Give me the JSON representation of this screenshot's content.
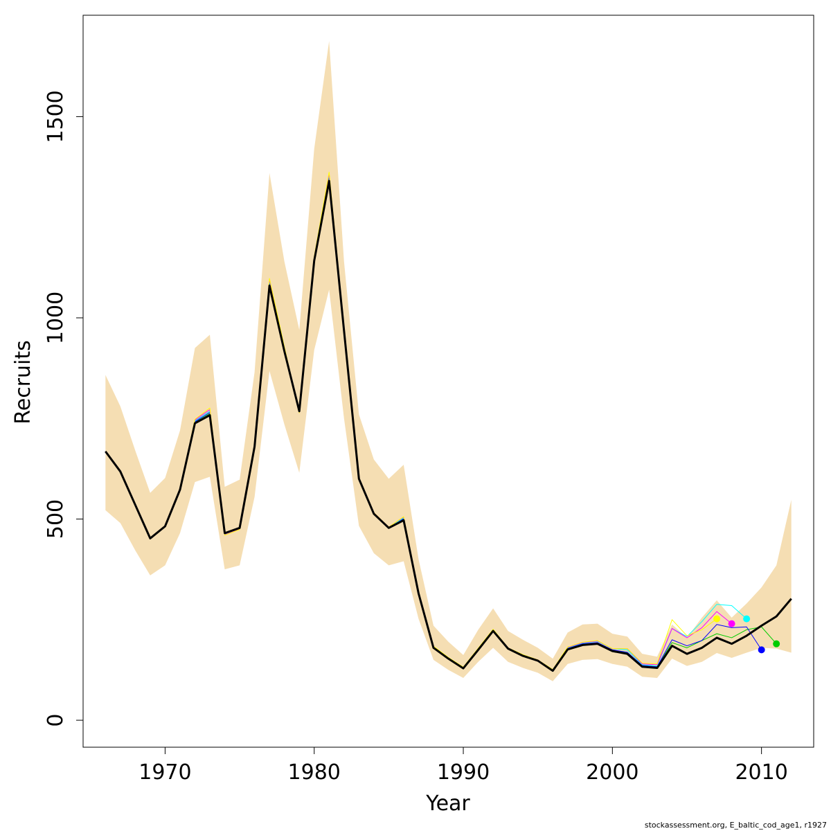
{
  "chart_data": {
    "type": "line",
    "xlabel": "Year",
    "ylabel": "Recruits",
    "xlim": [
      1964.5,
      2013.5
    ],
    "ylim": [
      -67,
      1752
    ],
    "x_ticks": [
      1970,
      1980,
      1990,
      2000,
      2010
    ],
    "y_ticks": [
      0,
      500,
      1000,
      1500
    ],
    "grid": false,
    "colors": {
      "band": "#F5DEB3",
      "main": "#000000"
    },
    "band": {
      "name": "",
      "x": [
        1966,
        1967,
        1968,
        1969,
        1970,
        1971,
        1972,
        1973,
        1974,
        1975,
        1976,
        1977,
        1978,
        1979,
        1980,
        1981,
        1982,
        1983,
        1984,
        1985,
        1986,
        1987,
        1988,
        1989,
        1990,
        1991,
        1992,
        1993,
        1994,
        1995,
        1996,
        1997,
        1998,
        1999,
        2000,
        2001,
        2002,
        2003,
        2004,
        2005,
        2006,
        2007,
        2008,
        2009,
        2010,
        2011,
        2012
      ],
      "lower": [
        522,
        490,
        422,
        360,
        385,
        465,
        592,
        605,
        375,
        385,
        555,
        868,
        735,
        615,
        920,
        1070,
        750,
        483,
        415,
        385,
        395,
        252,
        150,
        125,
        105,
        145,
        180,
        145,
        130,
        118,
        97,
        140,
        150,
        152,
        140,
        133,
        108,
        105,
        153,
        135,
        145,
        167,
        155,
        168,
        180,
        178,
        168
      ],
      "upper": [
        858,
        780,
        670,
        565,
        602,
        720,
        925,
        958,
        580,
        598,
        865,
        1360,
        1140,
        970,
        1420,
        1688,
        1140,
        760,
        648,
        600,
        635,
        400,
        235,
        195,
        162,
        225,
        278,
        222,
        200,
        180,
        153,
        218,
        238,
        240,
        215,
        208,
        165,
        158,
        238,
        205,
        255,
        298,
        255,
        290,
        330,
        385,
        548
      ]
    },
    "series": [
      {
        "name": "",
        "color": "#000000",
        "x": [
          1966,
          1967,
          1968,
          1969,
          1970,
          1971,
          1972,
          1973,
          1974,
          1975,
          1976,
          1977,
          1978,
          1979,
          1980,
          1981,
          1982,
          1983,
          1984,
          1985,
          1986,
          1987,
          1988,
          1989,
          1990,
          1991,
          1992,
          1993,
          1994,
          1995,
          1996,
          1997,
          1998,
          1999,
          2000,
          2001,
          2002,
          2003,
          2004,
          2005,
          2006,
          2007,
          2008,
          2009,
          2010,
          2011,
          2012
        ],
        "values": [
          668,
          618,
          535,
          452,
          482,
          573,
          738,
          758,
          465,
          478,
          680,
          1080,
          917,
          768,
          1142,
          1340,
          968,
          600,
          513,
          478,
          497,
          315,
          180,
          153,
          129,
          175,
          222,
          178,
          160,
          148,
          123,
          176,
          187,
          190,
          172,
          165,
          133,
          130,
          185,
          165,
          180,
          205,
          190,
          210,
          235,
          258,
          302
        ]
      },
      {
        "name": "",
        "color": "#00CC00",
        "end_marker": true,
        "x": [
          1966,
          1967,
          1968,
          1969,
          1970,
          1971,
          1972,
          1973,
          1974,
          1975,
          1976,
          1977,
          1978,
          1979,
          1980,
          1981,
          1982,
          1983,
          1984,
          1985,
          1986,
          1987,
          1988,
          1989,
          1990,
          1991,
          1992,
          1993,
          1994,
          1995,
          1996,
          1997,
          1998,
          1999,
          2000,
          2001,
          2002,
          2003,
          2004,
          2005,
          2006,
          2007,
          2008,
          2009,
          2010,
          2011
        ],
        "values": [
          668,
          618,
          535,
          452,
          482,
          573,
          740,
          762,
          462,
          475,
          681,
          1086,
          920,
          765,
          1145,
          1350,
          970,
          601,
          514,
          478,
          499,
          316,
          181,
          153,
          130,
          176,
          223,
          178,
          161,
          148,
          124,
          178,
          189,
          192,
          174,
          168,
          135,
          132,
          193,
          180,
          198,
          215,
          205,
          225,
          232,
          190
        ]
      },
      {
        "name": "",
        "color": "#0000FF",
        "end_marker": true,
        "x": [
          1966,
          1967,
          1968,
          1969,
          1970,
          1971,
          1972,
          1973,
          1974,
          1975,
          1976,
          1977,
          1978,
          1979,
          1980,
          1981,
          1982,
          1983,
          1984,
          1985,
          1986,
          1987,
          1988,
          1989,
          1990,
          1991,
          1992,
          1993,
          1994,
          1995,
          1996,
          1997,
          1998,
          1999,
          2000,
          2001,
          2002,
          2003,
          2004,
          2005,
          2006,
          2007,
          2008,
          2009,
          2010
        ],
        "values": [
          668,
          618,
          535,
          452,
          482,
          573,
          742,
          765,
          463,
          476,
          682,
          1090,
          922,
          767,
          1147,
          1352,
          972,
          602,
          515,
          479,
          501,
          317,
          182,
          154,
          130,
          177,
          224,
          179,
          161,
          149,
          124,
          179,
          190,
          193,
          175,
          169,
          136,
          133,
          200,
          185,
          198,
          238,
          230,
          232,
          175
        ]
      },
      {
        "name": "",
        "color": "#00FFFF",
        "end_marker": true,
        "x": [
          1966,
          1967,
          1968,
          1969,
          1970,
          1971,
          1972,
          1973,
          1974,
          1975,
          1976,
          1977,
          1978,
          1979,
          1980,
          1981,
          1982,
          1983,
          1984,
          1985,
          1986,
          1987,
          1988,
          1989,
          1990,
          1991,
          1992,
          1993,
          1994,
          1995,
          1996,
          1997,
          1998,
          1999,
          2000,
          2001,
          2002,
          2003,
          2004,
          2005,
          2006,
          2007,
          2008,
          2009
        ],
        "values": [
          668,
          618,
          535,
          452,
          482,
          573,
          744,
          768,
          462,
          476,
          683,
          1092,
          924,
          766,
          1148,
          1355,
          974,
          602,
          515,
          479,
          503,
          318,
          183,
          155,
          131,
          178,
          225,
          179,
          162,
          149,
          125,
          180,
          192,
          196,
          178,
          175,
          138,
          135,
          228,
          208,
          245,
          288,
          285,
          252
        ]
      },
      {
        "name": "",
        "color": "#FF00FF",
        "end_marker": true,
        "x": [
          1966,
          1967,
          1968,
          1969,
          1970,
          1971,
          1972,
          1973,
          1974,
          1975,
          1976,
          1977,
          1978,
          1979,
          1980,
          1981,
          1982,
          1983,
          1984,
          1985,
          1986,
          1987,
          1988,
          1989,
          1990,
          1991,
          1992,
          1993,
          1994,
          1995,
          1996,
          1997,
          1998,
          1999,
          2000,
          2001,
          2002,
          2003,
          2004,
          2005,
          2006,
          2007,
          2008
        ],
        "values": [
          668,
          618,
          535,
          452,
          482,
          573,
          746,
          772,
          461,
          475,
          684,
          1095,
          926,
          765,
          1150,
          1358,
          975,
          603,
          516,
          480,
          505,
          318,
          183,
          155,
          131,
          178,
          225,
          180,
          162,
          150,
          125,
          181,
          193,
          197,
          178,
          178,
          140,
          138,
          228,
          205,
          230,
          270,
          240
        ]
      },
      {
        "name": "",
        "color": "#FFFF00",
        "end_marker": true,
        "x": [
          1966,
          1967,
          1968,
          1969,
          1970,
          1971,
          1972,
          1973,
          1974,
          1975,
          1976,
          1977,
          1978,
          1979,
          1980,
          1981,
          1982,
          1983,
          1984,
          1985,
          1986,
          1987,
          1988,
          1989,
          1990,
          1991,
          1992,
          1993,
          1994,
          1995,
          1996,
          1997,
          1998,
          1999,
          2000,
          2001,
          2002,
          2003,
          2004,
          2005,
          2006,
          2007
        ],
        "values": [
          668,
          618,
          535,
          452,
          482,
          573,
          748,
          776,
          460,
          474,
          685,
          1098,
          928,
          764,
          1152,
          1362,
          976,
          603,
          516,
          480,
          506,
          319,
          184,
          156,
          132,
          179,
          226,
          180,
          163,
          150,
          126,
          182,
          194,
          198,
          178,
          178,
          142,
          140,
          250,
          210,
          225,
          252
        ]
      }
    ]
  },
  "footer": "stockassessment.org, E_baltic_cod_age1, r1927"
}
